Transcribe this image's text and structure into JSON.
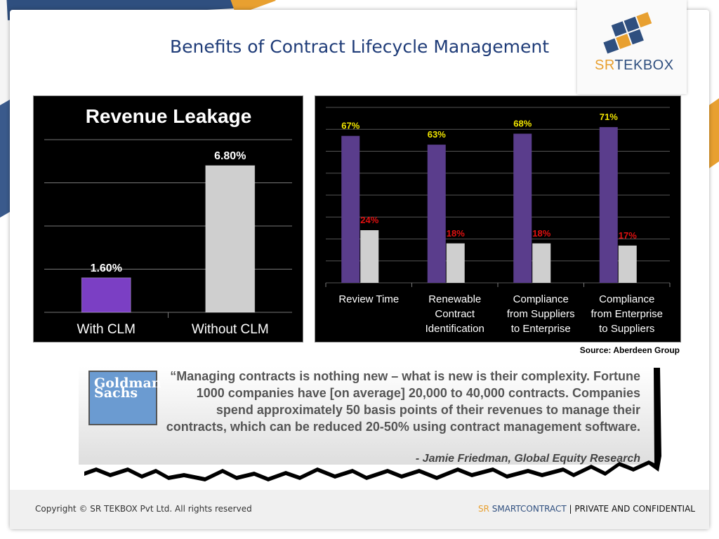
{
  "slide": {
    "title": "Benefits of Contract Lifecycle Management",
    "logo_sr": "SR",
    "logo_tekbox": "TEKBOX",
    "source": "Source: Aberdeen Group"
  },
  "quote": {
    "logo_line1": "Goldman",
    "logo_line2": "Sachs",
    "text": "“Managing contracts is nothing new – what is new is their complexity. Fortune 1000 companies have [on average] 20,000 to 40,000 contracts. Companies spend approximately 50 basis points of their revenues to manage their contracts, which can be reduced 20-50% using contract management software.",
    "attribution": "- Jamie Friedman, Global Equity Research"
  },
  "footer": {
    "copyright": "Copyright © SR TEKBOX Pvt Ltd. All rights reserved",
    "brand_sr": "SR",
    "brand_smartcontract": "SMARTCONTRACT",
    "brand_rest": " | PRIVATE AND CONFIDENTIAL"
  },
  "colors": {
    "accent_blue": "#1f3c78",
    "accent_orange": "#e8a030",
    "purple": "#7b3fc4",
    "gray_bar": "#cfcfcf",
    "label_yellow": "#f2e600",
    "label_red": "#e01010"
  },
  "chart_data": [
    {
      "type": "bar",
      "title": "Revenue Leakage",
      "categories": [
        "With CLM",
        "Without CLM"
      ],
      "values": [
        1.6,
        6.8
      ],
      "value_labels": [
        "1.60%",
        "6.80%"
      ],
      "ylim": [
        0,
        8
      ],
      "grid": true
    },
    {
      "type": "bar",
      "categories": [
        [
          "Review Time"
        ],
        [
          "Renewable",
          "Contract",
          "Identification"
        ],
        [
          "Compliance",
          "from Suppliers",
          "to Enterprise"
        ],
        [
          "Compliance",
          "from Enterprise",
          "to Suppliers"
        ]
      ],
      "series": [
        {
          "values": [
            67,
            63,
            68,
            71
          ],
          "value_labels": [
            "67%",
            "63%",
            "68%",
            "71%"
          ]
        },
        {
          "values": [
            24,
            18,
            18,
            17
          ],
          "value_labels": [
            "24%",
            "18%",
            "18%",
            "17%"
          ]
        }
      ],
      "ylim": [
        0,
        80
      ],
      "grid": true
    }
  ]
}
